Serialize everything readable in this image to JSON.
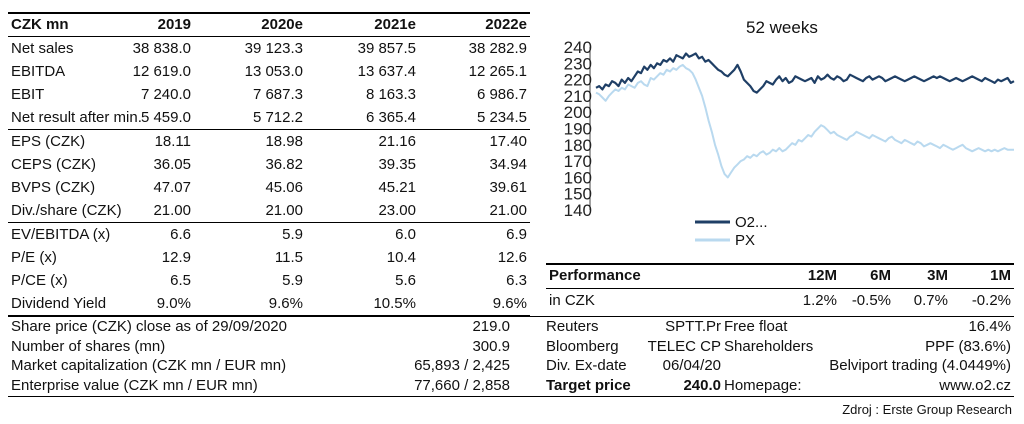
{
  "financials": {
    "header": {
      "label": "CZK mn",
      "years": [
        "2019",
        "2020e",
        "2021e",
        "2022e"
      ]
    },
    "rows": [
      {
        "label": "Net sales",
        "values": [
          "38 838.0",
          "39 123.3",
          "39 857.5",
          "38 282.9"
        ]
      },
      {
        "label": "EBITDA",
        "values": [
          "12 619.0",
          "13 053.0",
          "13 637.4",
          "12 265.1"
        ]
      },
      {
        "label": "EBIT",
        "values": [
          "7 240.0",
          "7 687.3",
          "8 163.3",
          "6 986.7"
        ]
      },
      {
        "label": "Net result after min.",
        "values": [
          "5 459.0",
          "5 712.2",
          "6 365.4",
          "5 234.5"
        ]
      },
      {
        "label": "EPS (CZK)",
        "values": [
          "18.11",
          "18.98",
          "21.16",
          "17.40"
        ]
      },
      {
        "label": "CEPS (CZK)",
        "values": [
          "36.05",
          "36.82",
          "39.35",
          "34.94"
        ]
      },
      {
        "label": "BVPS (CZK)",
        "values": [
          "47.07",
          "45.06",
          "45.21",
          "39.61"
        ]
      },
      {
        "label": "Div./share (CZK)",
        "values": [
          "21.00",
          "21.00",
          "23.00",
          "21.00"
        ]
      },
      {
        "label": "EV/EBITDA (x)",
        "values": [
          "6.6",
          "5.9",
          "6.0",
          "6.9"
        ]
      },
      {
        "label": "P/E (x)",
        "values": [
          "12.9",
          "11.5",
          "10.4",
          "12.6"
        ]
      },
      {
        "label": "P/CE (x)",
        "values": [
          "6.5",
          "5.9",
          "5.6",
          "6.3"
        ]
      },
      {
        "label": "Dividend Yield",
        "values": [
          "9.0%",
          "9.6%",
          "10.5%",
          "9.6%"
        ]
      }
    ]
  },
  "share_info": [
    {
      "label": "Share price (CZK) close as of 29/09/2020",
      "value": "219.0"
    },
    {
      "label": "Number of shares (mn)",
      "value": "300.9"
    },
    {
      "label": "Market capitalization (CZK mn / EUR mn)",
      "value": "65,893 / 2,425"
    },
    {
      "label": "Enterprise value (CZK mn / EUR mn)",
      "value": "77,660 / 2,858"
    }
  ],
  "chart_data": {
    "type": "line",
    "title": "52 weeks",
    "ylim": [
      140,
      240
    ],
    "yticks": [
      "140",
      "150",
      "160",
      "170",
      "180",
      "190",
      "200",
      "210",
      "220",
      "230",
      "240"
    ],
    "x": [
      0,
      4,
      8,
      12,
      16,
      20,
      24,
      28,
      32,
      36,
      40,
      44,
      48,
      52,
      56,
      60,
      64,
      68,
      72,
      76,
      80,
      84,
      88,
      92,
      96,
      100,
      104,
      108,
      112,
      116,
      120,
      124,
      128,
      132,
      136,
      140,
      144,
      148,
      152,
      156,
      160,
      164,
      168,
      172,
      176,
      180,
      184,
      188,
      192,
      196,
      200,
      204,
      208,
      212,
      216,
      220,
      224,
      228,
      232,
      236,
      240,
      244,
      248,
      252,
      256,
      260,
      264,
      268,
      272,
      276,
      280,
      284,
      288,
      292,
      296,
      300,
      304,
      308,
      312,
      316,
      320,
      324,
      328,
      332,
      336,
      340,
      344,
      348,
      352,
      356,
      360,
      364,
      368,
      372,
      376,
      380,
      384,
      388,
      392,
      396,
      400,
      404,
      408,
      412,
      416,
      420,
      424,
      428,
      432,
      436,
      440,
      444,
      448,
      452,
      456,
      460,
      464,
      468,
      472,
      476,
      480,
      484,
      488,
      492,
      496,
      500,
      504,
      508,
      512,
      516,
      520
    ],
    "series": [
      {
        "name": "O2...",
        "color": "#1f3f66",
        "values": [
          215,
          216,
          214,
          217,
          216,
          219,
          218,
          216,
          220,
          218,
          221,
          219,
          222,
          225,
          224,
          228,
          226,
          229,
          227,
          230,
          229,
          232,
          231,
          233,
          231,
          235,
          234,
          233,
          236,
          234,
          235,
          236,
          233,
          234,
          231,
          232,
          230,
          228,
          226,
          225,
          223,
          222,
          224,
          226,
          229,
          225,
          220,
          218,
          216,
          213,
          212,
          214,
          216,
          219,
          218,
          217,
          220,
          222,
          219,
          221,
          218,
          219,
          222,
          221,
          220,
          219,
          220,
          221,
          218,
          222,
          220,
          221,
          223,
          221,
          220,
          222,
          221,
          219,
          220,
          223,
          222,
          221,
          220,
          219,
          221,
          222,
          220,
          221,
          222,
          221,
          219,
          220,
          221,
          222,
          221,
          220,
          219,
          220,
          221,
          222,
          221,
          220,
          219,
          220,
          221,
          222,
          221,
          222,
          221,
          220,
          219,
          220,
          221,
          220,
          219,
          220,
          221,
          222,
          221,
          220,
          219,
          221,
          220,
          219,
          218,
          220,
          219,
          220,
          221,
          218,
          219
        ]
      },
      {
        "name": "PX",
        "color": "#b9d9ef",
        "values": [
          212,
          211,
          209,
          207,
          210,
          212,
          214,
          213,
          215,
          214,
          217,
          216,
          215,
          218,
          219,
          217,
          216,
          221,
          220,
          222,
          224,
          223,
          226,
          225,
          227,
          226,
          228,
          229,
          227,
          226,
          224,
          220,
          215,
          210,
          203,
          195,
          188,
          180,
          174,
          167,
          162,
          160,
          163,
          166,
          168,
          170,
          171,
          173,
          172,
          174,
          173,
          175,
          176,
          174,
          175,
          177,
          176,
          178,
          176,
          177,
          179,
          181,
          180,
          183,
          182,
          184,
          186,
          185,
          188,
          190,
          192,
          191,
          189,
          187,
          188,
          186,
          185,
          184,
          183,
          185,
          186,
          188,
          187,
          186,
          185,
          184,
          186,
          185,
          184,
          183,
          182,
          184,
          185,
          183,
          182,
          181,
          183,
          182,
          181,
          180,
          182,
          181,
          179,
          180,
          181,
          180,
          179,
          178,
          180,
          179,
          178,
          177,
          178,
          179,
          180,
          178,
          177,
          176,
          177,
          178,
          177,
          176,
          177,
          176,
          177,
          176,
          177,
          178,
          177,
          177,
          177
        ]
      }
    ],
    "legend": "bottom-left"
  },
  "performance": {
    "header": {
      "label": "Performance",
      "cols": [
        "12M",
        "6M",
        "3M",
        "1M"
      ]
    },
    "row": {
      "label": "in CZK",
      "values": [
        "1.2%",
        "-0.5%",
        "0.7%",
        "-0.2%"
      ]
    }
  },
  "info": [
    {
      "a": "Reuters",
      "b": "SPTT.Pr",
      "d": "Free float",
      "e": "16.4%"
    },
    {
      "a": "Bloomberg",
      "b": "TELEC CP",
      "d": "Shareholders",
      "e": "PPF (83.6%)"
    },
    {
      "a": "Div. Ex-date",
      "b": "06/04/20",
      "d": "",
      "e": "Belviport trading (4.0449%)"
    },
    {
      "a": "Target price",
      "b": "240.0",
      "d": "Homepage:",
      "e": "www.o2.cz"
    }
  ],
  "source": "Zdroj : Erste Group Research"
}
